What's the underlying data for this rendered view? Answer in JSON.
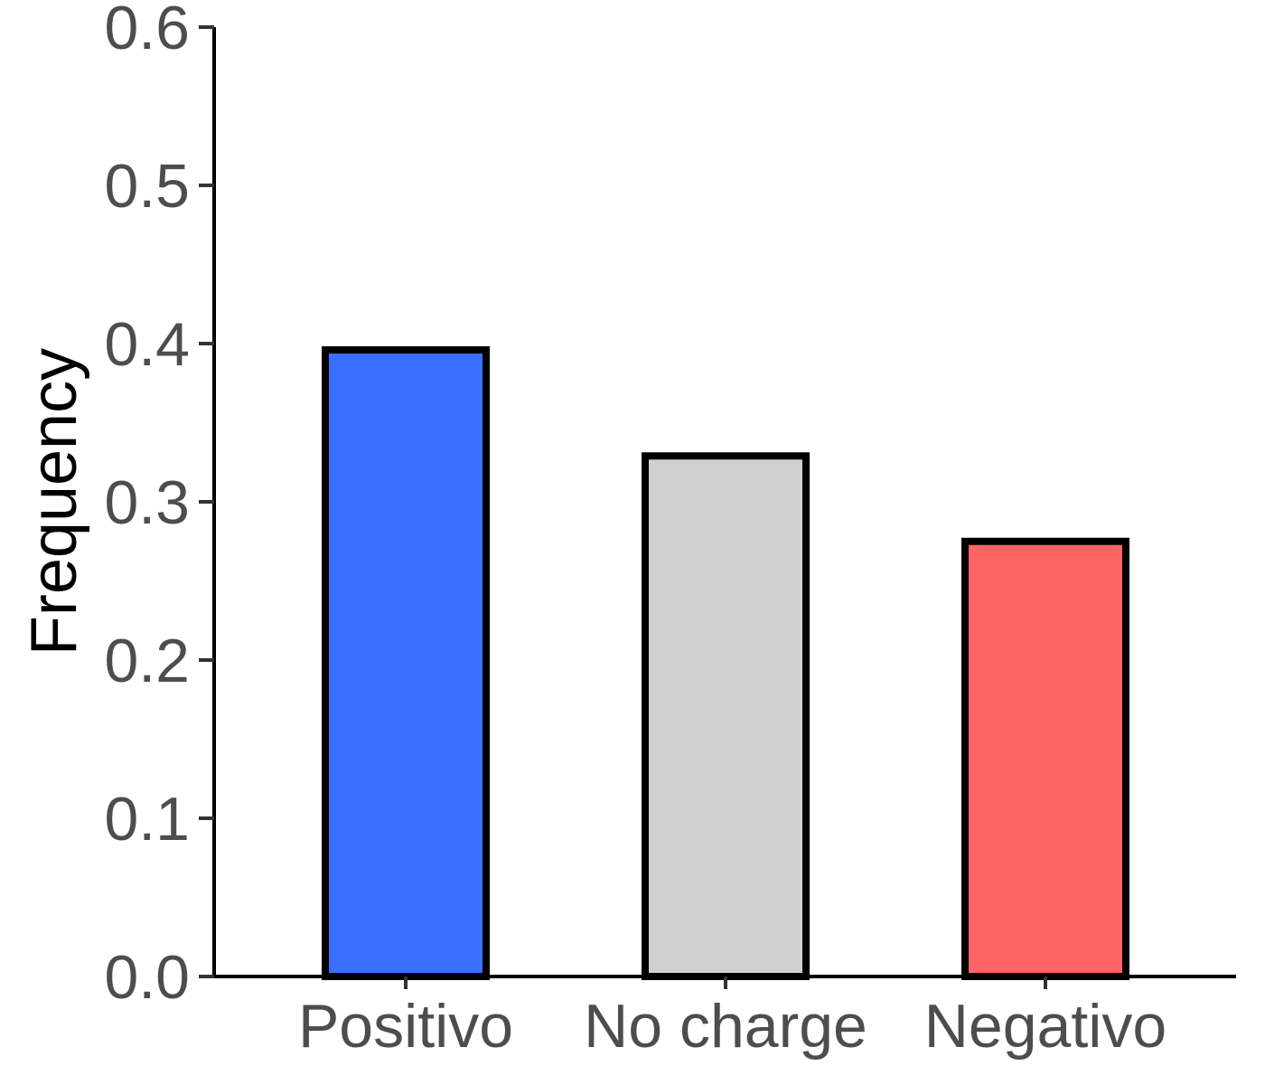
{
  "chart_data": {
    "type": "bar",
    "categories": [
      "Positivo",
      "No charge",
      "Negativo"
    ],
    "values": [
      0.396,
      0.329,
      0.275
    ],
    "colors": [
      "#3a70ff",
      "#d0d0d0",
      "#ff6464"
    ],
    "bar_outline_color": "#000000",
    "title": "",
    "xlabel": "",
    "ylabel": "Frequency",
    "ylim": [
      0,
      0.6
    ],
    "yticks": [
      "0.0",
      "0.1",
      "0.2",
      "0.3",
      "0.4",
      "0.5",
      "0.6"
    ],
    "grid": false,
    "legend": "none"
  }
}
